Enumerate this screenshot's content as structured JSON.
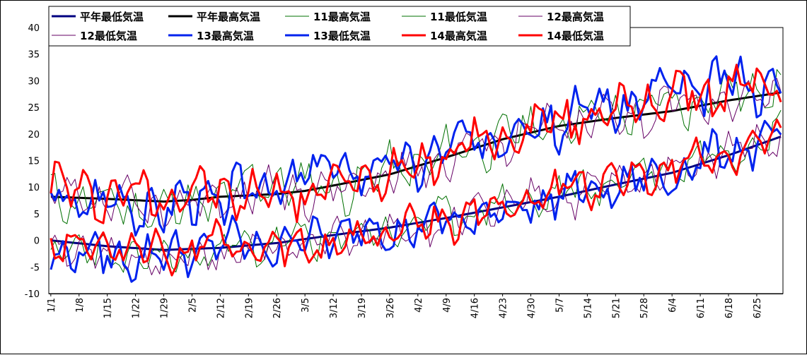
{
  "chart_data": {
    "type": "line",
    "title": "",
    "xlabel": "",
    "ylabel": "",
    "ylim": [
      -10,
      40
    ],
    "y_ticks": [
      "40",
      "35",
      "30",
      "25",
      "20",
      "15",
      "10",
      "5",
      "0",
      "-5",
      "-10"
    ],
    "x_ticks": [
      "1/1",
      "1/8",
      "1/15",
      "1/22",
      "1/29",
      "2/5",
      "2/12",
      "2/19",
      "2/26",
      "3/5",
      "3/12",
      "3/19",
      "3/26",
      "4/2",
      "4/9",
      "4/16",
      "4/23",
      "4/30",
      "5/7",
      "5/14",
      "5/21",
      "5/28",
      "6/4",
      "6/11",
      "6/18",
      "6/25"
    ],
    "grid": "horizontal",
    "legend_position": "top",
    "days": 182,
    "series": [
      {
        "name": "平年最低気温",
        "color": "#000080",
        "width": 3,
        "points": [
          [
            0,
            0
          ],
          [
            14,
            -1.1
          ],
          [
            28,
            -1.8
          ],
          [
            42,
            -1.4
          ],
          [
            56,
            -0.5
          ],
          [
            70,
            1
          ],
          [
            84,
            2.4
          ],
          [
            98,
            4.2
          ],
          [
            112,
            6.2
          ],
          [
            126,
            8.2
          ],
          [
            140,
            10.5
          ],
          [
            154,
            12.7
          ],
          [
            168,
            16
          ],
          [
            181,
            19.5
          ]
        ]
      },
      {
        "name": "平年最高気温",
        "color": "#000000",
        "width": 3,
        "points": [
          [
            0,
            8.2
          ],
          [
            14,
            7.8
          ],
          [
            28,
            7.3
          ],
          [
            35,
            7.6
          ],
          [
            42,
            8.2
          ],
          [
            56,
            8.7
          ],
          [
            63,
            9.3
          ],
          [
            70,
            10.3
          ],
          [
            84,
            12.4
          ],
          [
            98,
            15.6
          ],
          [
            112,
            19
          ],
          [
            126,
            21.5
          ],
          [
            140,
            23
          ],
          [
            154,
            24.3
          ],
          [
            168,
            26.3
          ],
          [
            181,
            27.8
          ]
        ]
      },
      {
        "name": "11最高気温",
        "color": "#007000",
        "width": 1,
        "base": [
          [
            0,
            8.5
          ],
          [
            14,
            6.8
          ],
          [
            28,
            5.5
          ],
          [
            42,
            8.5
          ],
          [
            56,
            11.5
          ],
          [
            70,
            9.5
          ],
          [
            84,
            13
          ],
          [
            98,
            16
          ],
          [
            112,
            19.5
          ],
          [
            126,
            22
          ],
          [
            140,
            24
          ],
          [
            154,
            25.5
          ],
          [
            168,
            27.5
          ],
          [
            181,
            30
          ]
        ],
        "amp": 4.5,
        "phase": 1.3,
        "seed": 11
      },
      {
        "name": "11最低気温",
        "color": "#007000",
        "width": 1,
        "base": [
          [
            0,
            -1
          ],
          [
            14,
            -3
          ],
          [
            28,
            -3.5
          ],
          [
            42,
            -1.8
          ],
          [
            56,
            -0.5
          ],
          [
            70,
            0.5
          ],
          [
            84,
            1.8
          ],
          [
            98,
            4.5
          ],
          [
            112,
            6.5
          ],
          [
            126,
            8.5
          ],
          [
            140,
            11
          ],
          [
            154,
            14
          ],
          [
            168,
            17
          ],
          [
            181,
            20.5
          ]
        ],
        "amp": 3.8,
        "phase": 2.1,
        "seed": 23
      },
      {
        "name": "12最高気温",
        "color": "#660066",
        "width": 1,
        "base": [
          [
            0,
            7.5
          ],
          [
            14,
            7
          ],
          [
            28,
            5.5
          ],
          [
            42,
            8
          ],
          [
            56,
            9.5
          ],
          [
            70,
            9
          ],
          [
            84,
            12
          ],
          [
            98,
            16
          ],
          [
            112,
            19.5
          ],
          [
            126,
            21.5
          ],
          [
            140,
            23.5
          ],
          [
            154,
            25
          ],
          [
            168,
            26.5
          ],
          [
            181,
            27.5
          ]
        ],
        "amp": 4.5,
        "phase": 3.4,
        "seed": 37
      },
      {
        "name": "12最低気温",
        "color": "#660066",
        "width": 1,
        "base": [
          [
            0,
            -1.5
          ],
          [
            14,
            -2.5
          ],
          [
            28,
            -4
          ],
          [
            42,
            -3
          ],
          [
            56,
            -1.5
          ],
          [
            70,
            0
          ],
          [
            84,
            1.5
          ],
          [
            98,
            3
          ],
          [
            112,
            6.5
          ],
          [
            126,
            8
          ],
          [
            140,
            10.5
          ],
          [
            154,
            13.5
          ],
          [
            168,
            16.5
          ],
          [
            181,
            19.5
          ]
        ],
        "amp": 3.8,
        "phase": 0.6,
        "seed": 51
      },
      {
        "name": "13最高気温",
        "color": "#0022ee",
        "width": 3,
        "base": [
          [
            0,
            8
          ],
          [
            14,
            7.5
          ],
          [
            28,
            6
          ],
          [
            42,
            8.5
          ],
          [
            56,
            10.5
          ],
          [
            70,
            14
          ],
          [
            84,
            13.5
          ],
          [
            98,
            17
          ],
          [
            112,
            20.5
          ],
          [
            126,
            23
          ],
          [
            140,
            25.5
          ],
          [
            154,
            28.5
          ],
          [
            168,
            29.5
          ],
          [
            181,
            29.5
          ]
        ],
        "amp": 5,
        "phase": 4.2,
        "seed": 67
      },
      {
        "name": "13最低気温",
        "color": "#0022ee",
        "width": 3,
        "base": [
          [
            0,
            -2
          ],
          [
            14,
            -3
          ],
          [
            28,
            -3
          ],
          [
            42,
            -0.5
          ],
          [
            56,
            -1
          ],
          [
            70,
            1.5
          ],
          [
            84,
            2
          ],
          [
            98,
            3.5
          ],
          [
            112,
            5.5
          ],
          [
            126,
            8.5
          ],
          [
            140,
            10
          ],
          [
            154,
            12.5
          ],
          [
            168,
            17
          ],
          [
            181,
            19
          ]
        ],
        "amp": 4,
        "phase": 5.1,
        "seed": 79
      },
      {
        "name": "14最高気温",
        "color": "#ff0000",
        "width": 3,
        "base": [
          [
            0,
            10
          ],
          [
            14,
            8.5
          ],
          [
            28,
            9
          ],
          [
            42,
            9
          ],
          [
            56,
            8.5
          ],
          [
            70,
            10
          ],
          [
            84,
            13
          ],
          [
            98,
            16.5
          ],
          [
            112,
            19.5
          ],
          [
            126,
            22.5
          ],
          [
            140,
            24.5
          ],
          [
            154,
            27
          ],
          [
            168,
            28
          ],
          [
            181,
            30
          ]
        ],
        "amp": 4.8,
        "phase": 0.2,
        "seed": 97
      },
      {
        "name": "14最低気温",
        "color": "#ff0000",
        "width": 3,
        "base": [
          [
            0,
            -0.5
          ],
          [
            14,
            -1
          ],
          [
            28,
            -2
          ],
          [
            42,
            -1
          ],
          [
            56,
            -2
          ],
          [
            70,
            -1
          ],
          [
            84,
            2
          ],
          [
            98,
            4
          ],
          [
            112,
            6.5
          ],
          [
            126,
            9
          ],
          [
            140,
            11
          ],
          [
            154,
            13.5
          ],
          [
            168,
            16.5
          ],
          [
            181,
            18.5
          ]
        ],
        "amp": 3.8,
        "phase": 2.7,
        "seed": 113
      }
    ]
  }
}
